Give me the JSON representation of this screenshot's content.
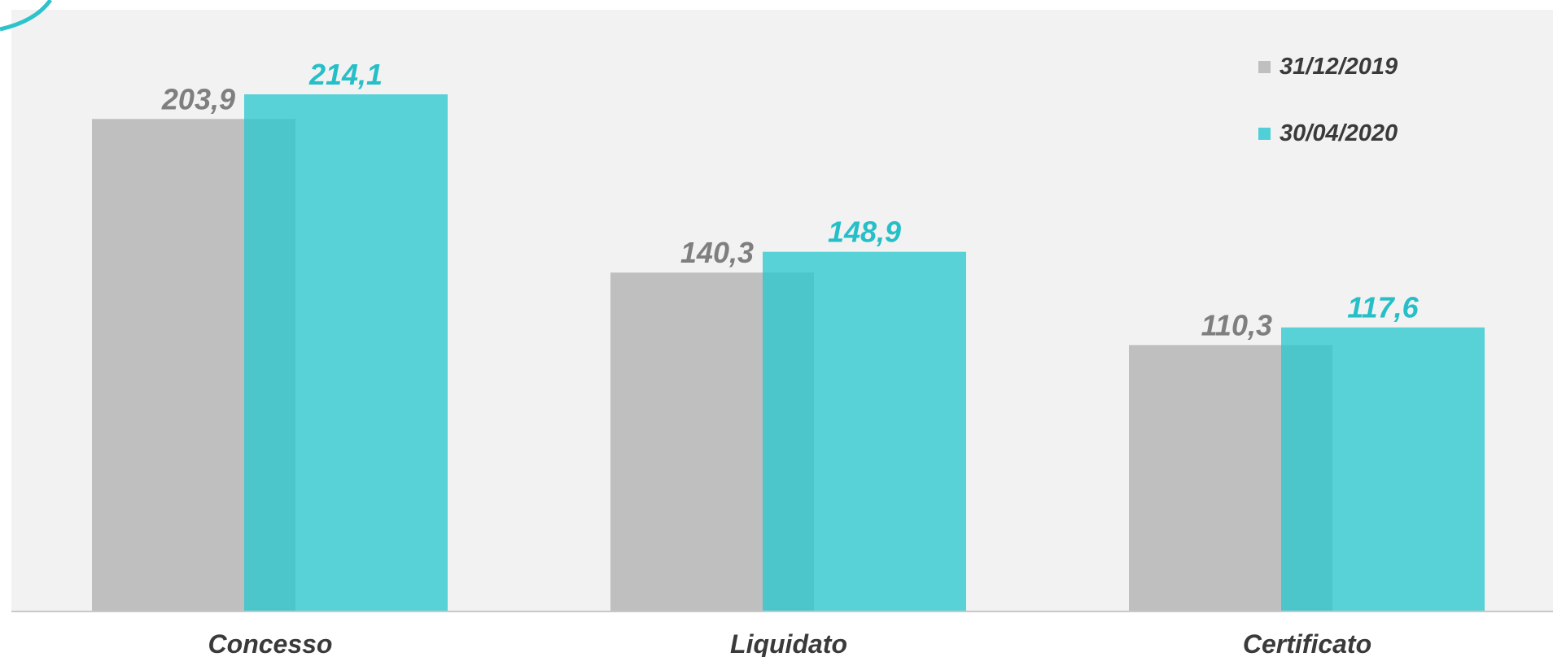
{
  "chart_data": {
    "type": "bar",
    "categories": [
      "Concesso",
      "Liquidato",
      "Certificato"
    ],
    "series": [
      {
        "name": "31/12/2019",
        "values": [
          203.9,
          140.3,
          110.3
        ],
        "labels": [
          "203,9",
          "140,3",
          "110,3"
        ],
        "color": "#bfbfbf",
        "label_color": "#7f7f7f"
      },
      {
        "name": "30/04/2020",
        "values": [
          214.1,
          148.9,
          117.6
        ],
        "labels": [
          "214,1",
          "148,9",
          "117,6"
        ],
        "color": "#28c6cf",
        "label_color": "#26bfc8"
      }
    ],
    "ylim": [
      0,
      240
    ],
    "grid": false,
    "legend": "top-right",
    "background_color": "#f2f2f2",
    "accent_color": "#2cc3cc"
  }
}
